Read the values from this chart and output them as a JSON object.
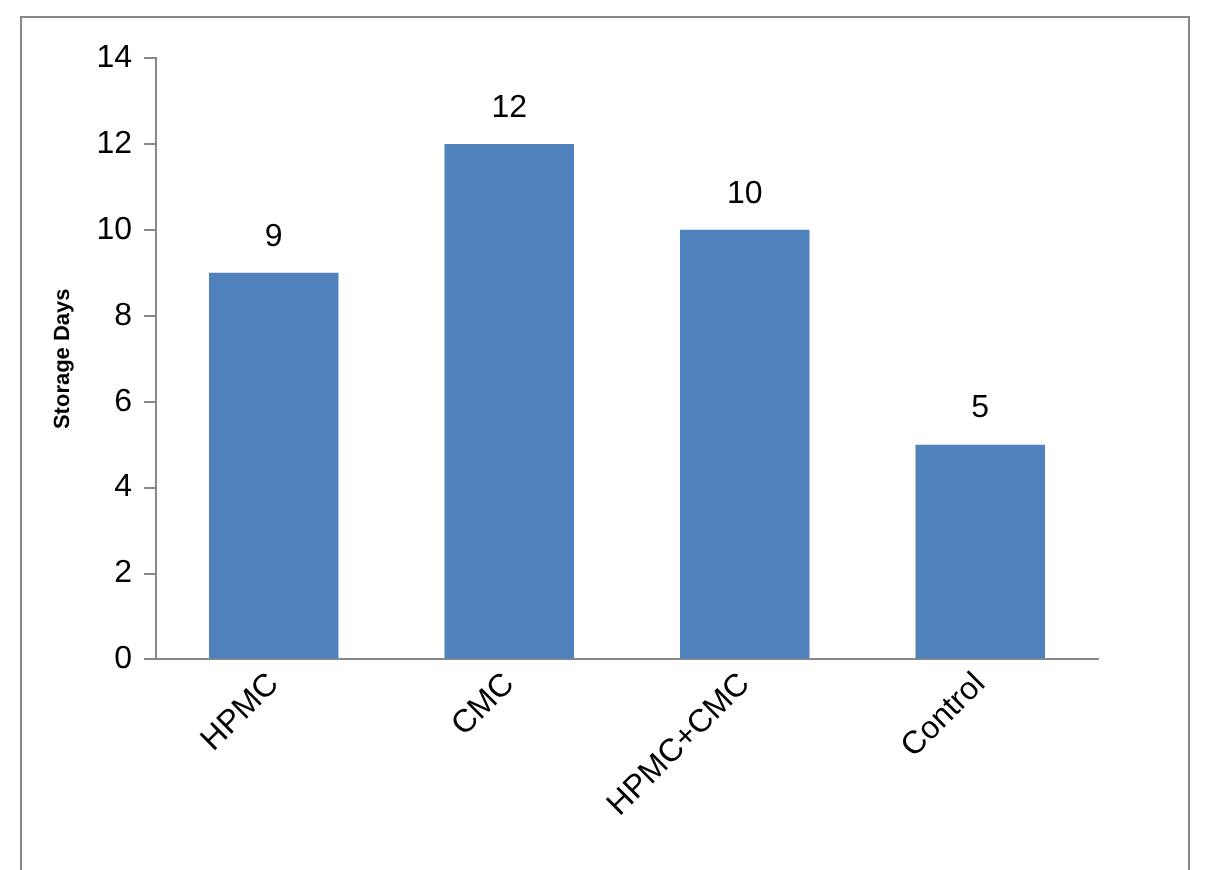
{
  "chart_data": {
    "type": "bar",
    "ylabel": "Storage Days",
    "categories": [
      "HPMC",
      "CMC",
      "HPMC+CMC",
      "Control"
    ],
    "values": [
      9,
      12,
      10,
      5
    ],
    "color": "#4f81bd",
    "ylim": [
      0,
      14
    ],
    "yticks": [
      0,
      2,
      4,
      6,
      8,
      10,
      12,
      14
    ],
    "grid": false,
    "legend": false,
    "data_labels": true
  }
}
